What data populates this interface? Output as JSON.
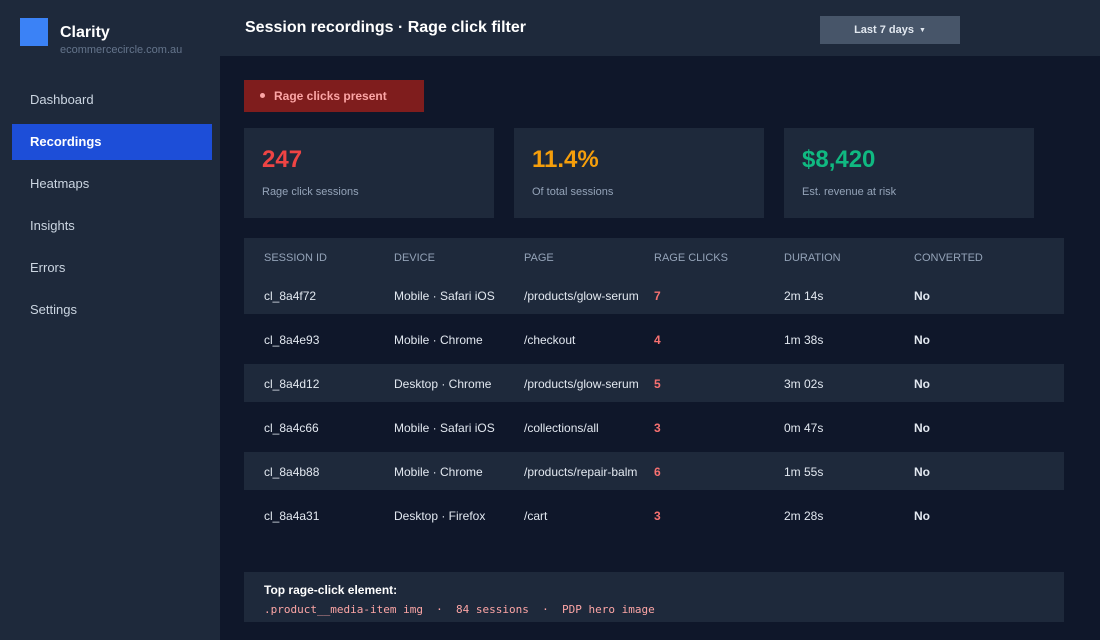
{
  "sidebar": {
    "brand_name": "Clarity",
    "brand_domain": "ecommercecircle.com.au",
    "logo_color": "#3b82f6",
    "items": [
      {
        "label": "Dashboard"
      },
      {
        "label": "Recordings"
      },
      {
        "label": "Heatmaps"
      },
      {
        "label": "Insights"
      },
      {
        "label": "Errors"
      },
      {
        "label": "Settings"
      }
    ],
    "active_item": "Recordings"
  },
  "header": {
    "title": "Session recordings · Rage click filter",
    "date_range": "Last 7 days",
    "date_caret_icon": "caret-down-icon"
  },
  "filter": {
    "label": "Rage clicks present",
    "color": "#7f1d1d"
  },
  "stats": [
    {
      "value": "247",
      "label": "Rage click sessions",
      "color": "#ef4444"
    },
    {
      "value": "11.4%",
      "label": "Of total sessions",
      "color": "#f59e0b"
    },
    {
      "value": "$8,420",
      "label": "Est. revenue at risk",
      "color": "#10b981"
    }
  ],
  "table": {
    "columns": [
      "SESSION ID",
      "DEVICE",
      "PAGE",
      "RAGE CLICKS",
      "DURATION",
      "CONVERTED"
    ],
    "rows": [
      {
        "id": "cl_8a4f72",
        "device": "Mobile · Safari iOS",
        "page": "/products/glow-serum",
        "rage_clicks": "7",
        "duration": "2m 14s",
        "converted": "No"
      },
      {
        "id": "cl_8a4e93",
        "device": "Mobile · Chrome",
        "page": "/checkout",
        "rage_clicks": "4",
        "duration": "1m 38s",
        "converted": "No"
      },
      {
        "id": "cl_8a4d12",
        "device": "Desktop · Chrome",
        "page": "/products/glow-serum",
        "rage_clicks": "5",
        "duration": "3m 02s",
        "converted": "No"
      },
      {
        "id": "cl_8a4c66",
        "device": "Mobile · Safari iOS",
        "page": "/collections/all",
        "rage_clicks": "3",
        "duration": "0m 47s",
        "converted": "No"
      },
      {
        "id": "cl_8a4b88",
        "device": "Mobile · Chrome",
        "page": "/products/repair-balm",
        "rage_clicks": "6",
        "duration": "1m 55s",
        "converted": "No"
      },
      {
        "id": "cl_8a4a31",
        "device": "Desktop · Firefox",
        "page": "/cart",
        "rage_clicks": "3",
        "duration": "2m 28s",
        "converted": "No"
      }
    ]
  },
  "footer": {
    "label": "Top rage-click element:",
    "code": ".product__media-item img  ·  84 sessions  ·  PDP hero image"
  }
}
